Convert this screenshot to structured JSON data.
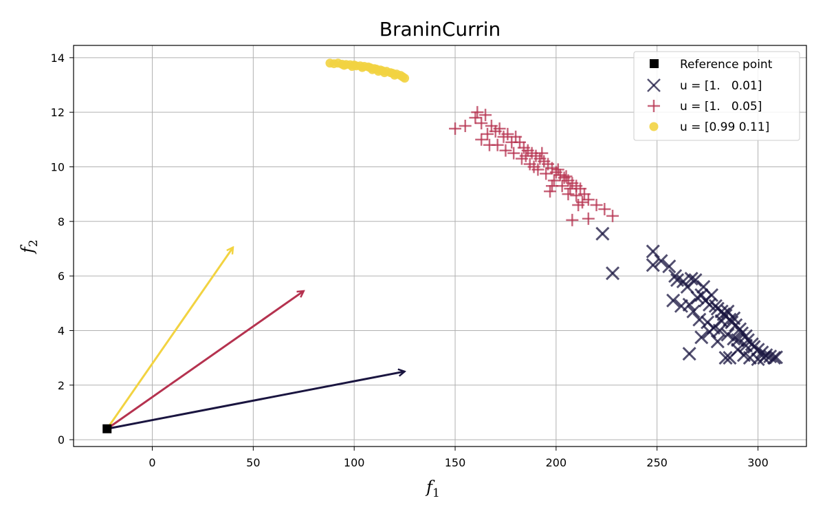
{
  "chart_data": {
    "type": "scatter",
    "title": "BraninCurrin",
    "xlabel": {
      "base": "f",
      "sub": "1"
    },
    "ylabel": {
      "base": "f",
      "sub": "2"
    },
    "xlim": [
      -39,
      324
    ],
    "ylim": [
      -0.25,
      14.45
    ],
    "xticks": [
      0,
      50,
      100,
      150,
      200,
      250,
      300
    ],
    "yticks": [
      0,
      2,
      4,
      6,
      8,
      10,
      12,
      14
    ],
    "grid": true,
    "legend_position": "top-right",
    "reference_point": {
      "label": "Reference point",
      "x": -22.4,
      "y": 0.4,
      "color": "#000000"
    },
    "series": [
      {
        "name": "u = [1.   0.01]",
        "marker": "x",
        "color": "#1a1540",
        "points": [
          [
            223,
            7.55
          ],
          [
            228,
            6.1
          ],
          [
            248,
            6.9
          ],
          [
            248,
            6.4
          ],
          [
            252,
            6.55
          ],
          [
            256,
            6.35
          ],
          [
            259,
            6.0
          ],
          [
            263,
            5.8
          ],
          [
            265,
            5.6
          ],
          [
            267,
            5.9
          ],
          [
            269,
            5.85
          ],
          [
            270,
            5.2
          ],
          [
            272,
            5.3
          ],
          [
            273,
            5.6
          ],
          [
            274,
            5.1
          ],
          [
            276,
            4.95
          ],
          [
            277,
            5.3
          ],
          [
            279,
            4.9
          ],
          [
            280,
            4.8
          ],
          [
            282,
            4.7
          ],
          [
            283,
            4.6
          ],
          [
            284,
            4.55
          ],
          [
            286,
            4.4
          ],
          [
            287,
            4.3
          ],
          [
            289,
            4.2
          ],
          [
            291,
            4.05
          ],
          [
            292,
            3.9
          ],
          [
            294,
            3.8
          ],
          [
            295,
            3.65
          ],
          [
            297,
            3.5
          ],
          [
            298,
            3.4
          ],
          [
            300,
            3.3
          ],
          [
            302,
            3.2
          ],
          [
            304,
            3.1
          ],
          [
            306,
            3.05
          ],
          [
            308,
            3.0
          ],
          [
            309,
            3.02
          ],
          [
            258,
            5.1
          ],
          [
            262,
            4.9
          ],
          [
            266,
            4.95
          ],
          [
            260,
            5.85
          ],
          [
            268,
            4.7
          ],
          [
            271,
            4.4
          ],
          [
            275,
            4.3
          ],
          [
            278,
            4.1
          ],
          [
            281,
            4.0
          ],
          [
            285,
            3.85
          ],
          [
            288,
            3.7
          ],
          [
            272,
            3.75
          ],
          [
            276,
            3.95
          ],
          [
            280,
            3.6
          ],
          [
            284,
            3.0
          ],
          [
            286,
            3.0
          ],
          [
            290,
            3.3
          ],
          [
            293,
            3.1
          ],
          [
            296,
            3.0
          ],
          [
            300,
            2.95
          ],
          [
            303,
            3.0
          ],
          [
            266,
            3.15
          ],
          [
            282,
            4.35
          ],
          [
            285,
            4.7
          ],
          [
            288,
            4.45
          ],
          [
            290,
            3.65
          ],
          [
            294,
            3.45
          ]
        ]
      },
      {
        "name": "u = [1.   0.05]",
        "marker": "+",
        "color": "#b5324f",
        "points": [
          [
            150,
            11.4
          ],
          [
            155,
            11.5
          ],
          [
            160,
            11.8
          ],
          [
            161,
            12.0
          ],
          [
            163,
            11.6
          ],
          [
            165,
            11.9
          ],
          [
            166,
            11.2
          ],
          [
            168,
            11.5
          ],
          [
            170,
            11.3
          ],
          [
            172,
            11.4
          ],
          [
            174,
            11.1
          ],
          [
            176,
            11.2
          ],
          [
            178,
            10.9
          ],
          [
            180,
            11.1
          ],
          [
            182,
            10.9
          ],
          [
            184,
            10.7
          ],
          [
            186,
            10.6
          ],
          [
            188,
            10.5
          ],
          [
            190,
            10.4
          ],
          [
            192,
            10.3
          ],
          [
            194,
            10.2
          ],
          [
            196,
            10.1
          ],
          [
            198,
            9.95
          ],
          [
            200,
            9.8
          ],
          [
            202,
            9.7
          ],
          [
            204,
            9.6
          ],
          [
            206,
            9.5
          ],
          [
            208,
            9.4
          ],
          [
            210,
            9.3
          ],
          [
            212,
            9.2
          ],
          [
            214,
            9.0
          ],
          [
            216,
            8.8
          ],
          [
            220,
            8.6
          ],
          [
            224,
            8.45
          ],
          [
            228,
            8.2
          ],
          [
            208,
            8.05
          ],
          [
            216,
            8.1
          ],
          [
            163,
            11.0
          ],
          [
            167,
            10.8
          ],
          [
            171,
            10.8
          ],
          [
            175,
            10.6
          ],
          [
            183,
            10.3
          ],
          [
            187,
            10.1
          ],
          [
            191,
            9.9
          ],
          [
            195,
            9.75
          ],
          [
            199,
            9.5
          ],
          [
            203,
            9.3
          ],
          [
            206,
            9.0
          ],
          [
            210,
            8.95
          ],
          [
            213,
            8.7
          ],
          [
            197,
            9.1
          ],
          [
            185,
            10.4
          ],
          [
            189,
            10.0
          ],
          [
            193,
            10.5
          ],
          [
            201,
            9.9
          ],
          [
            205,
            9.65
          ],
          [
            207,
            9.2
          ],
          [
            211,
            8.6
          ],
          [
            198,
            9.3
          ],
          [
            179,
            10.5
          ]
        ]
      },
      {
        "name": "u = [0.99 0.11]",
        "marker": "o",
        "color": "#f2d341",
        "points": [
          [
            88,
            13.8
          ],
          [
            90,
            13.78
          ],
          [
            92,
            13.8
          ],
          [
            94,
            13.76
          ],
          [
            96,
            13.75
          ],
          [
            98,
            13.74
          ],
          [
            100,
            13.73
          ],
          [
            101,
            13.7
          ],
          [
            103,
            13.7
          ],
          [
            105,
            13.68
          ],
          [
            107,
            13.66
          ],
          [
            108,
            13.63
          ],
          [
            110,
            13.6
          ],
          [
            111,
            13.58
          ],
          [
            113,
            13.55
          ],
          [
            114,
            13.52
          ],
          [
            116,
            13.5
          ],
          [
            118,
            13.45
          ],
          [
            119,
            13.43
          ],
          [
            121,
            13.4
          ],
          [
            123,
            13.35
          ],
          [
            124,
            13.3
          ],
          [
            125,
            13.25
          ],
          [
            99,
            13.68
          ],
          [
            104,
            13.64
          ],
          [
            109,
            13.56
          ],
          [
            115,
            13.45
          ],
          [
            120,
            13.36
          ],
          [
            95,
            13.72
          ],
          [
            112,
            13.5
          ]
        ]
      }
    ],
    "arrows": [
      {
        "from": [
          -22.4,
          0.4
        ],
        "to": [
          40,
          7.05
        ],
        "color": "#f2d341"
      },
      {
        "from": [
          -22.4,
          0.4
        ],
        "to": [
          75,
          5.45
        ],
        "color": "#b5324f"
      },
      {
        "from": [
          -22.4,
          0.4
        ],
        "to": [
          125,
          2.5
        ],
        "color": "#1a1540"
      }
    ]
  }
}
